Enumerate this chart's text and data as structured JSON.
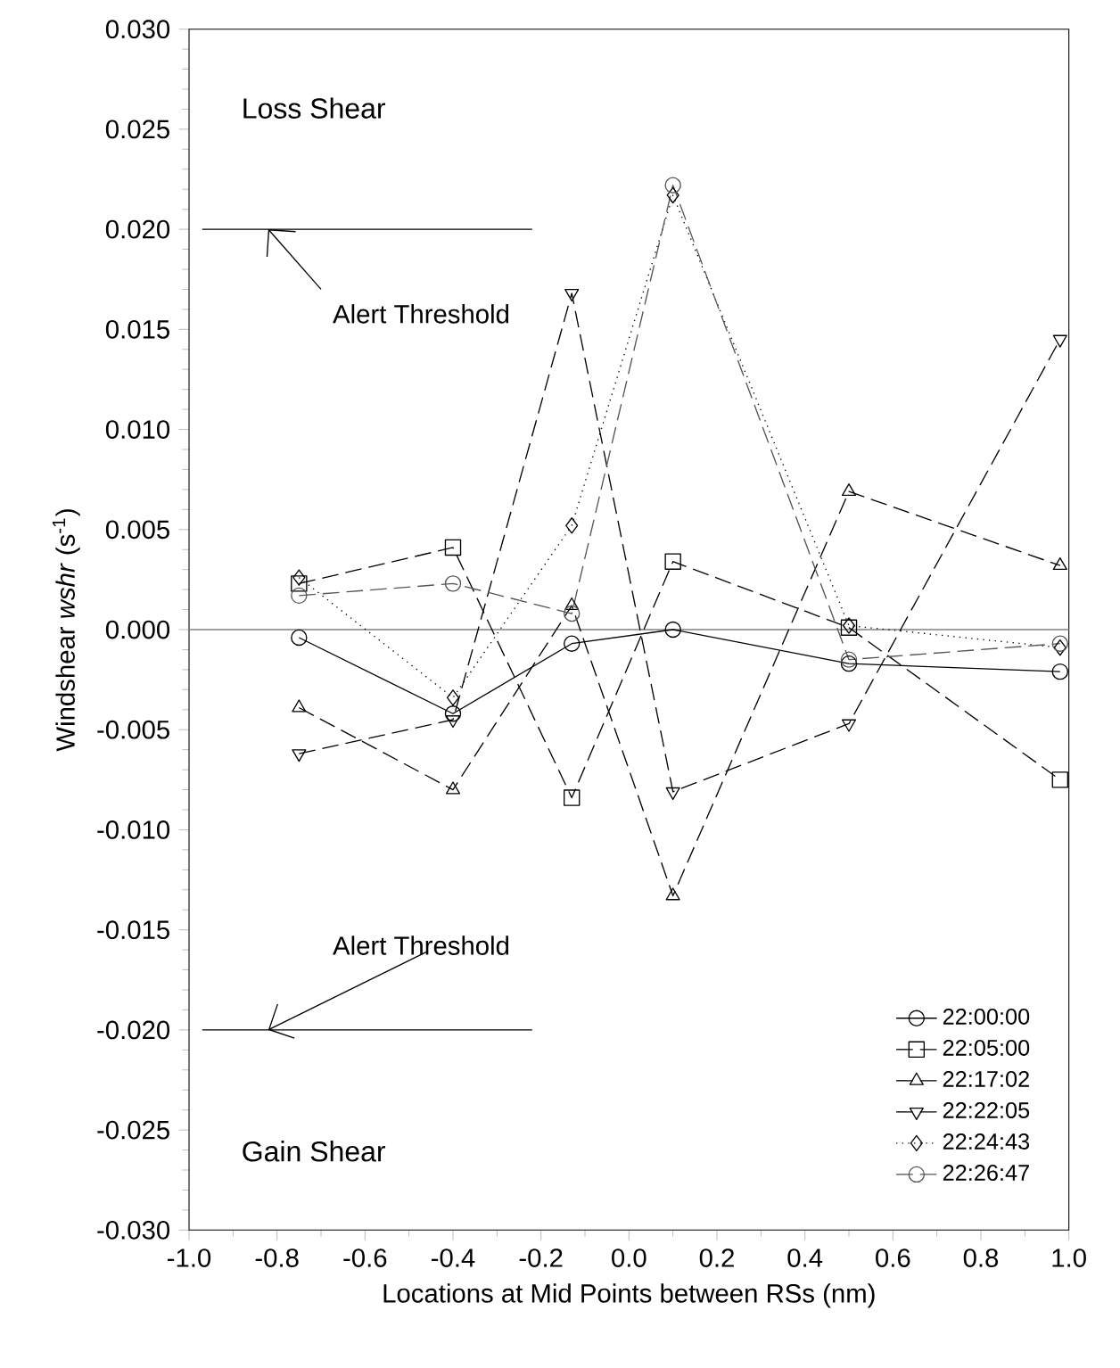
{
  "chart_data": {
    "type": "line",
    "xlabel": "Locations at Mid Points between RSs (nm)",
    "ylabel": "Windshear *wshr* (s$^{-1}$)",
    "annotations": [
      "Loss Shear",
      "Gain Shear"
    ],
    "x": [
      -0.75,
      -0.4,
      -0.13,
      0.1,
      0.5,
      0.98
    ],
    "xlim": [
      -1.0,
      1.0
    ],
    "xticks": [
      {
        "value": -1.0,
        "label": "-1.0"
      },
      {
        "value": -0.8,
        "label": "-0.8"
      },
      {
        "value": -0.6,
        "label": "-0.6"
      },
      {
        "value": -0.4,
        "label": "-0.4"
      },
      {
        "value": -0.2,
        "label": "-0.2"
      },
      {
        "value": 0.0,
        "label": "0.0"
      },
      {
        "value": 0.2,
        "label": "0.2"
      },
      {
        "value": 0.4,
        "label": "0.4"
      },
      {
        "value": 0.6,
        "label": "0.6"
      },
      {
        "value": 0.8,
        "label": "0.8"
      },
      {
        "value": 1.0,
        "label": "1.0"
      }
    ],
    "ylim": [
      -0.03,
      0.03
    ],
    "yticks": [
      {
        "value": -0.03,
        "label": "-0.030"
      },
      {
        "value": -0.025,
        "label": "-0.025"
      },
      {
        "value": -0.02,
        "label": "-0.020"
      },
      {
        "value": -0.015,
        "label": "-0.015"
      },
      {
        "value": -0.01,
        "label": "-0.010"
      },
      {
        "value": -0.005,
        "label": "-0.005"
      },
      {
        "value": 0.0,
        "label": "0.000"
      },
      {
        "value": 0.005,
        "label": "0.005"
      },
      {
        "value": 0.01,
        "label": "0.010"
      },
      {
        "value": 0.015,
        "label": "0.015"
      },
      {
        "value": 0.02,
        "label": "0.020"
      },
      {
        "value": 0.025,
        "label": "0.025"
      },
      {
        "value": 0.03,
        "label": "0.030"
      }
    ],
    "ref_lines": [
      {
        "axis": "y",
        "value": 0.02,
        "label": "Alert Threshold",
        "color": "#000000"
      },
      {
        "axis": "y",
        "value": -0.02,
        "label": "Alert Threshold",
        "color": "#000000"
      },
      {
        "axis": "y",
        "value": 0.0,
        "color": "#808080"
      }
    ],
    "legend": "bottom right",
    "series": [
      {
        "name": "22:00:00",
        "color": "#000000",
        "marker": "circle",
        "line_style": "solid",
        "values": [
          -0.0004,
          -0.0042,
          -0.0007,
          0.0,
          -0.0017,
          -0.0021
        ]
      },
      {
        "name": "22:05:00",
        "color": "#000000",
        "marker": "square",
        "line_style": "dashed",
        "values": [
          0.0023,
          0.0041,
          -0.0084,
          0.0034,
          0.0001,
          -0.0075
        ]
      },
      {
        "name": "22:17:02",
        "color": "#000000",
        "marker": "triangle",
        "line_style": "dashed",
        "values": [
          -0.0039,
          -0.008,
          0.0012,
          -0.0133,
          0.0069,
          0.0032
        ]
      },
      {
        "name": "22:22:05",
        "color": "#000000",
        "marker": "triangle down",
        "line_style": "dashed",
        "values": [
          -0.0062,
          -0.0045,
          0.0168,
          -0.0081,
          -0.0047,
          0.0145
        ]
      },
      {
        "name": "22:24:43",
        "color": "#000000",
        "marker": "diamond",
        "line_style": "dotted",
        "values": [
          0.0026,
          -0.0034,
          0.0052,
          0.0217,
          0.0002,
          -0.0009
        ]
      },
      {
        "name": "22:26:47",
        "color": "#555555",
        "marker": "circle",
        "line_style": "dashed",
        "values": [
          0.0017,
          0.0023,
          0.0008,
          0.0222,
          -0.0015,
          -0.0007
        ]
      }
    ]
  }
}
